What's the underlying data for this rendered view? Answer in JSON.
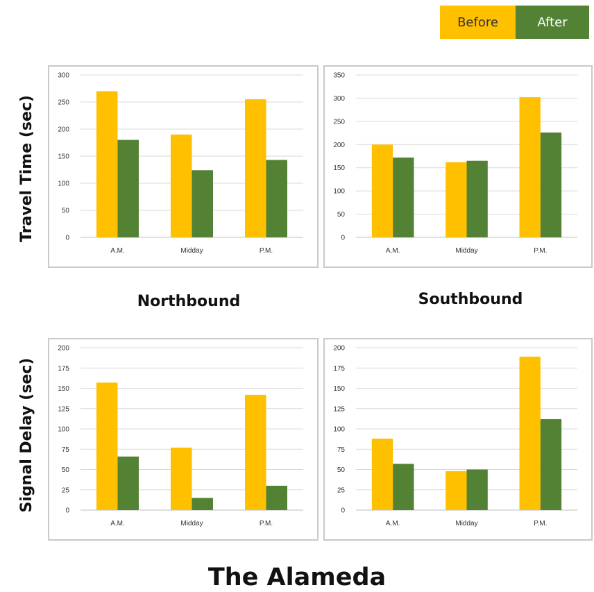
{
  "legend": {
    "before_label": "Before",
    "after_label": "After",
    "before_color": "#FFC000",
    "after_color": "#548235"
  },
  "row_labels": {
    "travel_time": "Travel Time (sec)",
    "signal_delay": "Signal Delay (sec)"
  },
  "direction_labels": {
    "northbound": "Northbound",
    "southbound": "Southbound"
  },
  "title": "The Alameda",
  "chart_data": [
    {
      "type": "bar",
      "categories": [
        "A.M.",
        "Midday",
        "P.M."
      ],
      "series": [
        {
          "name": "Before",
          "values": [
            270,
            190,
            255
          ]
        },
        {
          "name": "After",
          "values": [
            180,
            124,
            143
          ]
        }
      ],
      "yticks": [
        "0",
        "50",
        "100",
        "150",
        "200",
        "250",
        "300"
      ],
      "ylim": [
        0,
        300
      ],
      "grid": true
    },
    {
      "type": "bar",
      "categories": [
        "A.M.",
        "Midday",
        "P.M."
      ],
      "series": [
        {
          "name": "Before",
          "values": [
            200,
            162,
            302
          ]
        },
        {
          "name": "After",
          "values": [
            172,
            165,
            226
          ]
        }
      ],
      "yticks": [
        "0",
        "50",
        "100",
        "150",
        "200",
        "250",
        "300",
        "350"
      ],
      "ylim": [
        0,
        350
      ],
      "grid": true
    },
    {
      "type": "bar",
      "categories": [
        "A.M.",
        "Midday",
        "P.M."
      ],
      "series": [
        {
          "name": "Before",
          "values": [
            157,
            77,
            142
          ]
        },
        {
          "name": "After",
          "values": [
            66,
            15,
            30
          ]
        }
      ],
      "yticks": [
        "0",
        "25",
        "50",
        "75",
        "100",
        "125",
        "150",
        "175",
        "200"
      ],
      "ylim": [
        0,
        200
      ],
      "grid": true
    },
    {
      "type": "bar",
      "categories": [
        "A.M.",
        "Midday",
        "P.M."
      ],
      "series": [
        {
          "name": "Before",
          "values": [
            88,
            48,
            189
          ]
        },
        {
          "name": "After",
          "values": [
            57,
            50,
            112
          ]
        }
      ],
      "yticks": [
        "0",
        "25",
        "50",
        "75",
        "100",
        "125",
        "150",
        "175",
        "200"
      ],
      "ylim": [
        0,
        200
      ],
      "grid": true
    }
  ]
}
